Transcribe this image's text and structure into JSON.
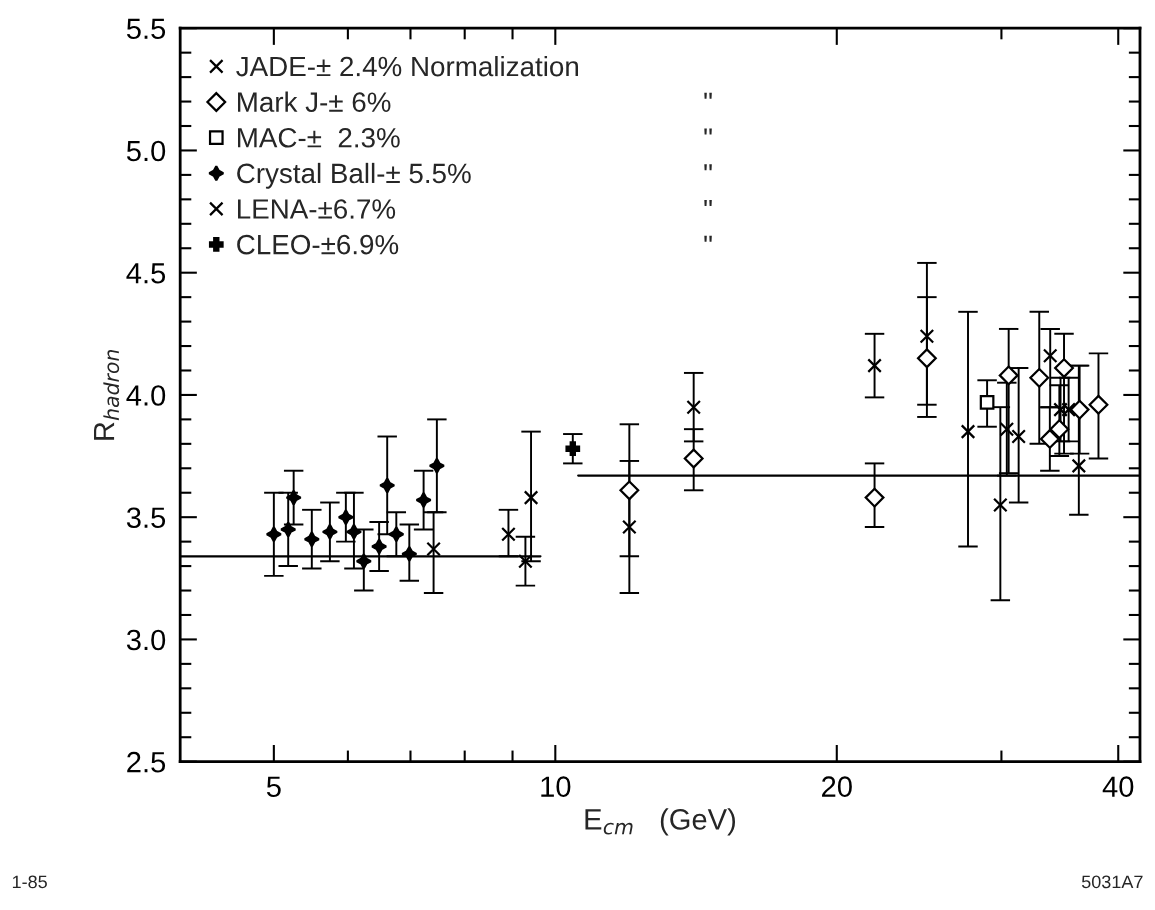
{
  "chart_data": {
    "type": "scatter",
    "xlabel": "E$_{cm}$   (GeV)",
    "ylabel": "R$_{hadron}$",
    "log": "x",
    "xlim": [
      3.97,
      42.2
    ],
    "xticks": [
      5,
      {
        "value": 6,
        "label": null
      },
      {
        "value": 7,
        "label": null
      },
      {
        "value": 8,
        "label": null
      },
      {
        "value": 9,
        "label": null
      },
      10,
      20,
      {
        "value": 30,
        "label": null
      },
      40
    ],
    "ylim": [
      2.5,
      5.5
    ],
    "yticks": [
      2.5,
      {
        "value": 2.6,
        "label": null
      },
      {
        "value": 2.7,
        "label": null
      },
      {
        "value": 2.8,
        "label": null
      },
      {
        "value": 2.9,
        "label": null
      },
      {
        "value": 3.0,
        "label": "3.0"
      },
      {
        "value": 3.1,
        "label": null
      },
      {
        "value": 3.2,
        "label": null
      },
      {
        "value": 3.3,
        "label": null
      },
      {
        "value": 3.4,
        "label": null
      },
      3.5,
      {
        "value": 3.6,
        "label": null
      },
      {
        "value": 3.7,
        "label": null
      },
      {
        "value": 3.8,
        "label": null
      },
      {
        "value": 3.9,
        "label": null
      },
      {
        "value": 4.0,
        "label": "4.0"
      },
      {
        "value": 4.1,
        "label": null
      },
      {
        "value": 4.2,
        "label": null
      },
      {
        "value": 4.3,
        "label": null
      },
      {
        "value": 4.4,
        "label": null
      },
      4.5,
      {
        "value": 4.6,
        "label": null
      },
      {
        "value": 4.7,
        "label": null
      },
      {
        "value": 4.8,
        "label": null
      },
      {
        "value": 4.9,
        "label": null
      },
      {
        "value": 5.0,
        "label": "5.0"
      },
      {
        "value": 5.1,
        "label": null
      },
      {
        "value": 5.2,
        "label": null
      },
      {
        "value": 5.3,
        "label": null
      },
      {
        "value": 5.4,
        "label": null
      },
      5.5
    ],
    "grid": false,
    "legend": "top left",
    "series": [
      {
        "name": "JADE-± 2.4% Normalization",
        "type": "scatter",
        "marker": "cross",
        "color": "#000000",
        "x": [
          12.0,
          14.06,
          21.95,
          24.97,
          27.63,
          29.92,
          30.4,
          31.3,
          33.83,
          34.7,
          35.4,
          36.3
        ],
        "values": [
          3.46,
          3.95,
          4.12,
          4.24,
          3.85,
          3.55,
          3.86,
          3.83,
          4.16,
          3.94,
          3.94,
          3.71
        ],
        "errors": [
          [
            3.19,
            3.73
          ],
          [
            3.81,
            4.09
          ],
          [
            3.99,
            4.25
          ],
          [
            3.96,
            4.54
          ],
          [
            3.38,
            4.34
          ],
          [
            3.16,
            3.95
          ],
          [
            3.67,
            4.05
          ],
          [
            3.56,
            4.11
          ],
          [
            3.95,
            4.27
          ],
          [
            3.81,
            4.07
          ],
          [
            3.81,
            4.07
          ],
          [
            3.51,
            4.12
          ]
        ]
      },
      {
        "name": "Mark J-± 6%",
        "type": "scatter",
        "marker": "diamond",
        "color": "#000000",
        "x": [
          12.0,
          14.06,
          21.95,
          24.97,
          30.54,
          32.93,
          33.8,
          34.6,
          35.0,
          36.37,
          38.1
        ],
        "values": [
          3.61,
          3.74,
          3.58,
          4.15,
          4.08,
          4.07,
          3.82,
          3.86,
          4.11,
          3.94,
          3.96
        ],
        "errors": [
          [
            3.34,
            3.88
          ],
          [
            3.61,
            3.86
          ],
          [
            3.46,
            3.72
          ],
          [
            3.91,
            4.4
          ],
          [
            3.68,
            4.27
          ],
          [
            3.8,
            4.34
          ],
          [
            3.69,
            3.95
          ],
          [
            3.75,
            4.04
          ],
          [
            3.76,
            4.25
          ],
          [
            3.76,
            4.12
          ],
          [
            3.74,
            4.17
          ]
        ]
      },
      {
        "name": "MAC-±  2.3%",
        "type": "scatter",
        "marker": "square",
        "color": "#000000",
        "x": [
          28.96
        ],
        "values": [
          3.97
        ],
        "errors": [
          [
            3.87,
            4.06
          ]
        ]
      },
      {
        "name": "Crystal Ball-± 5.5%",
        "type": "scatter",
        "marker": "star",
        "color": "#000000",
        "x": [
          5.0,
          5.18,
          5.25,
          5.49,
          5.74,
          5.97,
          6.09,
          6.24,
          6.48,
          6.61,
          6.76,
          6.98,
          7.23,
          7.47
        ],
        "values": [
          3.43,
          3.45,
          3.58,
          3.41,
          3.44,
          3.5,
          3.44,
          3.32,
          3.38,
          3.63,
          3.43,
          3.35,
          3.57,
          3.71
        ],
        "errors": [
          [
            3.26,
            3.6
          ],
          [
            3.3,
            3.6
          ],
          [
            3.47,
            3.69
          ],
          [
            3.29,
            3.53
          ],
          [
            3.32,
            3.56
          ],
          [
            3.4,
            3.6
          ],
          [
            3.29,
            3.6
          ],
          [
            3.2,
            3.45
          ],
          [
            3.28,
            3.48
          ],
          [
            3.43,
            3.83
          ],
          [
            3.34,
            3.52
          ],
          [
            3.24,
            3.47
          ],
          [
            3.45,
            3.69
          ],
          [
            3.52,
            3.9
          ]
        ]
      },
      {
        "name": "LENA-±6.7%",
        "type": "scatter",
        "marker": "cross",
        "color": "#000000",
        "x": [
          7.41,
          8.91,
          9.29,
          9.42
        ],
        "values": [
          3.37,
          3.43,
          3.32,
          3.58
        ],
        "errors": [
          [
            3.19,
            3.52
          ],
          [
            3.34,
            3.53
          ],
          [
            3.22,
            3.42
          ],
          [
            3.32,
            3.85
          ]
        ]
      },
      {
        "name": "CLEO-±6.9%",
        "type": "scatter",
        "marker": "plus",
        "color": "#000000",
        "x": [
          10.44
        ],
        "values": [
          3.78
        ],
        "errors": [
          [
            3.72,
            3.84
          ]
        ]
      },
      {
        "type": "line",
        "color": "#000000",
        "x": [
          3.97,
          9.64
        ],
        "values": [
          3.34,
          3.34
        ]
      },
      {
        "type": "line",
        "color": "#000000",
        "x": [
          10.58,
          42.2
        ],
        "values": [
          3.67,
          3.67
        ]
      }
    ],
    "annotations": [
      "\"",
      "\"",
      "\"",
      "\"",
      "\"",
      "1-85",
      "5031A7"
    ]
  }
}
